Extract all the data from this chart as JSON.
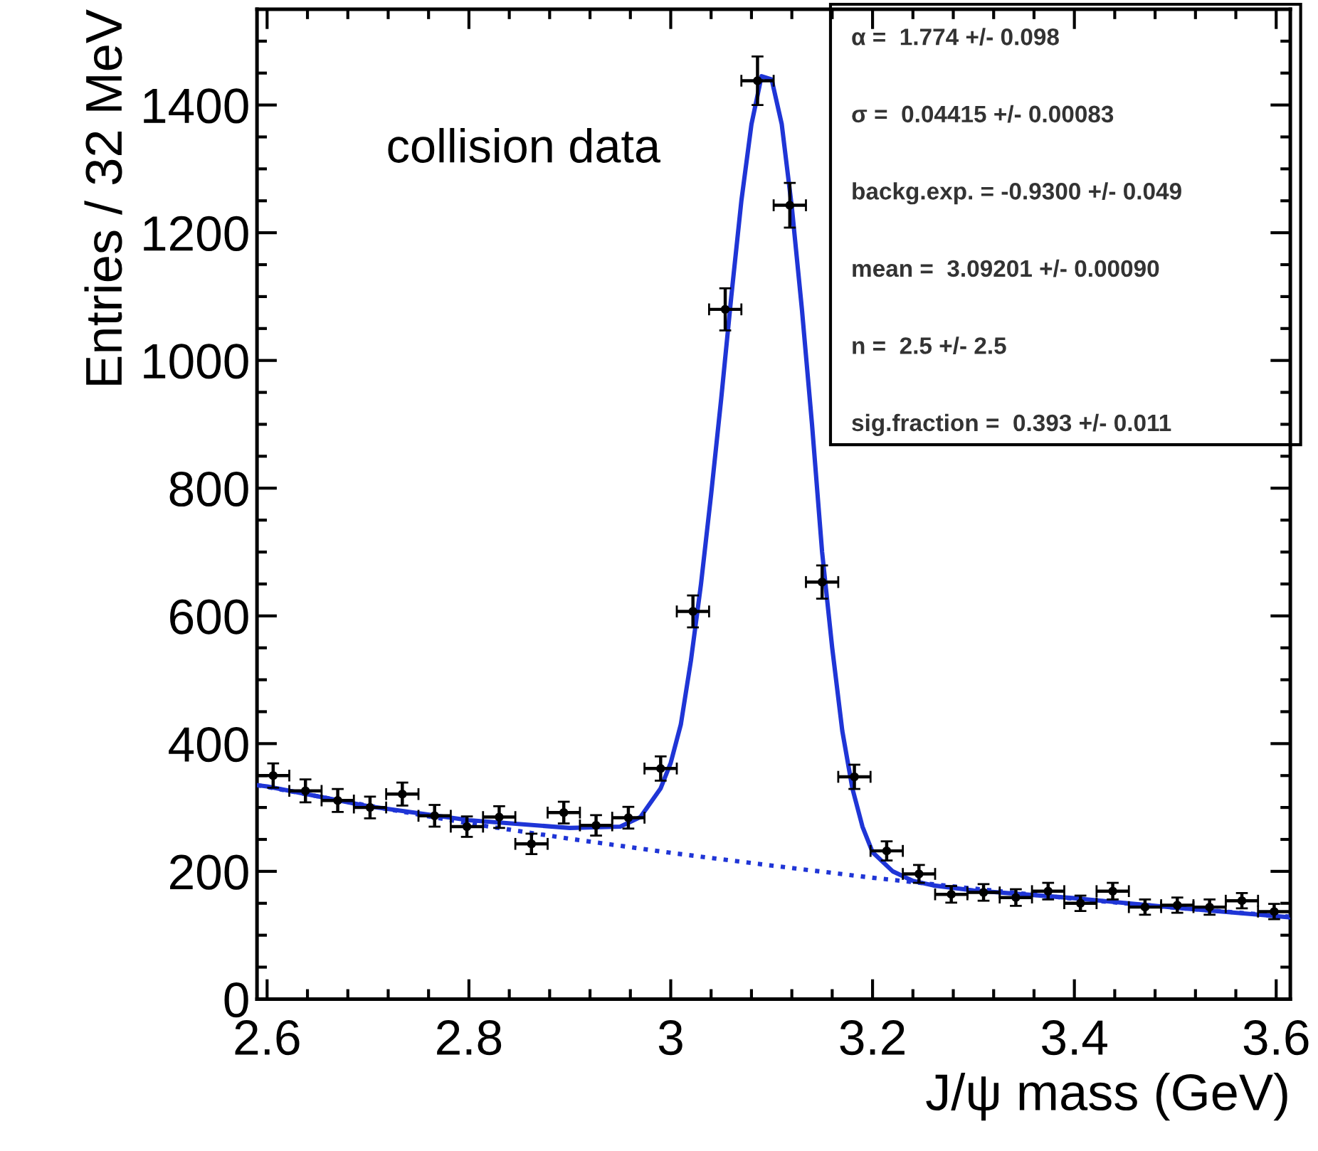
{
  "chart_data": {
    "type": "scatter",
    "xlabel": "J/ψ mass (GeV)",
    "ylabel": "Entries / 32 MeV",
    "annotations": [
      "collision data",
      "α =  1.774 +/- 0.098",
      "σ =  0.04415 +/- 0.00083",
      "backg.exp. = -0.9300 +/- 0.049",
      "mean =  3.09201 +/- 0.00090",
      "n =  2.5 +/- 2.5",
      "sig.fraction =  0.393 +/- 0.011"
    ],
    "xlim": [
      2.59,
      3.614
    ],
    "ylim": [
      0,
      1550
    ],
    "xticks": [
      2.6,
      {
        "value": 2.64,
        "label": null
      },
      {
        "value": 2.68,
        "label": null
      },
      {
        "value": 2.72,
        "label": null
      },
      {
        "value": 2.76,
        "label": null
      },
      2.8,
      {
        "value": 2.84,
        "label": null
      },
      {
        "value": 2.88,
        "label": null
      },
      {
        "value": 2.92,
        "label": null
      },
      {
        "value": 2.96,
        "label": null
      },
      3,
      {
        "value": 3.04,
        "label": null
      },
      {
        "value": 3.08,
        "label": null
      },
      {
        "value": 3.12,
        "label": null
      },
      {
        "value": 3.16,
        "label": null
      },
      3.2,
      {
        "value": 3.24,
        "label": null
      },
      {
        "value": 3.28,
        "label": null
      },
      {
        "value": 3.32,
        "label": null
      },
      {
        "value": 3.36,
        "label": null
      },
      3.4,
      {
        "value": 3.44,
        "label": null
      },
      {
        "value": 3.48,
        "label": null
      },
      {
        "value": 3.52,
        "label": null
      },
      {
        "value": 3.56,
        "label": null
      },
      3.6
    ],
    "yticks": [
      0,
      {
        "value": 50,
        "label": null
      },
      {
        "value": 100,
        "label": null
      },
      {
        "value": 150,
        "label": null
      },
      200,
      {
        "value": 250,
        "label": null
      },
      {
        "value": 300,
        "label": null
      },
      {
        "value": 350,
        "label": null
      },
      400,
      {
        "value": 450,
        "label": null
      },
      {
        "value": 500,
        "label": null
      },
      {
        "value": 550,
        "label": null
      },
      600,
      {
        "value": 650,
        "label": null
      },
      {
        "value": 700,
        "label": null
      },
      {
        "value": 750,
        "label": null
      },
      800,
      {
        "value": 850,
        "label": null
      },
      {
        "value": 900,
        "label": null
      },
      {
        "value": 950,
        "label": null
      },
      1000,
      {
        "value": 1050,
        "label": null
      },
      {
        "value": 1100,
        "label": null
      },
      {
        "value": 1150,
        "label": null
      },
      1200,
      {
        "value": 1250,
        "label": null
      },
      {
        "value": 1300,
        "label": null
      },
      {
        "value": 1350,
        "label": null
      },
      1400,
      {
        "value": 1450,
        "label": null
      },
      {
        "value": 1500,
        "label": null
      }
    ],
    "grid": false,
    "legend": false,
    "series": [
      {
        "color": "#000000",
        "marker": "circle",
        "x": [
          2.606,
          2.638,
          2.67,
          2.702,
          2.734,
          2.766,
          2.798,
          2.83,
          2.862,
          2.894,
          2.926,
          2.958,
          2.99,
          3.022,
          3.054,
          3.086,
          3.118,
          3.15,
          3.182,
          3.214,
          3.246,
          3.278,
          3.31,
          3.342,
          3.374,
          3.406,
          3.438,
          3.47,
          3.502,
          3.534,
          3.566,
          3.598
        ],
        "values": [
          350,
          326,
          311,
          300,
          321,
          287,
          270,
          285,
          243,
          292,
          272,
          284,
          361,
          607,
          1080,
          1438,
          1243,
          653,
          348,
          232,
          196,
          164,
          167,
          159,
          169,
          150,
          169,
          144,
          147,
          144,
          154,
          137
        ],
        "errors": [
          19,
          18,
          18,
          17,
          18,
          17,
          16,
          17,
          16,
          17,
          16,
          17,
          19,
          25,
          33,
          38,
          35,
          26,
          19,
          15,
          14,
          13,
          13,
          13,
          13,
          12,
          13,
          12,
          12,
          12,
          12,
          12
        ],
        "xerrors": [
          0.016,
          0.016,
          0.016,
          0.016,
          0.016,
          0.016,
          0.016,
          0.016,
          0.016,
          0.016,
          0.016,
          0.016,
          0.016,
          0.016,
          0.016,
          0.016,
          0.016,
          0.016,
          0.016,
          0.016,
          0.016,
          0.016,
          0.016,
          0.016,
          0.016,
          0.016,
          0.016,
          0.016,
          0.016,
          0.016,
          0.016,
          0.016
        ]
      },
      {
        "type": "line",
        "color": "#1f35d6",
        "line_style": "solid",
        "x": [
          2.59,
          2.6,
          2.7,
          2.8,
          2.9,
          2.95,
          2.97,
          2.99,
          3.0,
          3.01,
          3.02,
          3.03,
          3.04,
          3.05,
          3.06,
          3.07,
          3.08,
          3.09,
          3.1,
          3.11,
          3.12,
          3.13,
          3.14,
          3.15,
          3.16,
          3.17,
          3.18,
          3.19,
          3.2,
          3.22,
          3.24,
          3.26,
          3.3,
          3.4,
          3.5,
          3.614
        ],
        "values": [
          335,
          333,
          302,
          280,
          268,
          270,
          285,
          330,
          370,
          430,
          530,
          650,
          790,
          940,
          1100,
          1250,
          1370,
          1445,
          1440,
          1370,
          1240,
          1080,
          900,
          700,
          550,
          420,
          330,
          270,
          230,
          200,
          185,
          178,
          170,
          158,
          143,
          128
        ]
      },
      {
        "type": "line",
        "color": "#1f35d6",
        "line_style": "dotted",
        "x": [
          2.59,
          2.7,
          2.8,
          2.9,
          3.0,
          3.1,
          3.2,
          3.3,
          3.4,
          3.5,
          3.614
        ],
        "values": [
          335,
          303,
          275,
          251,
          229,
          209,
          190,
          173,
          157,
          143,
          129
        ]
      }
    ]
  }
}
